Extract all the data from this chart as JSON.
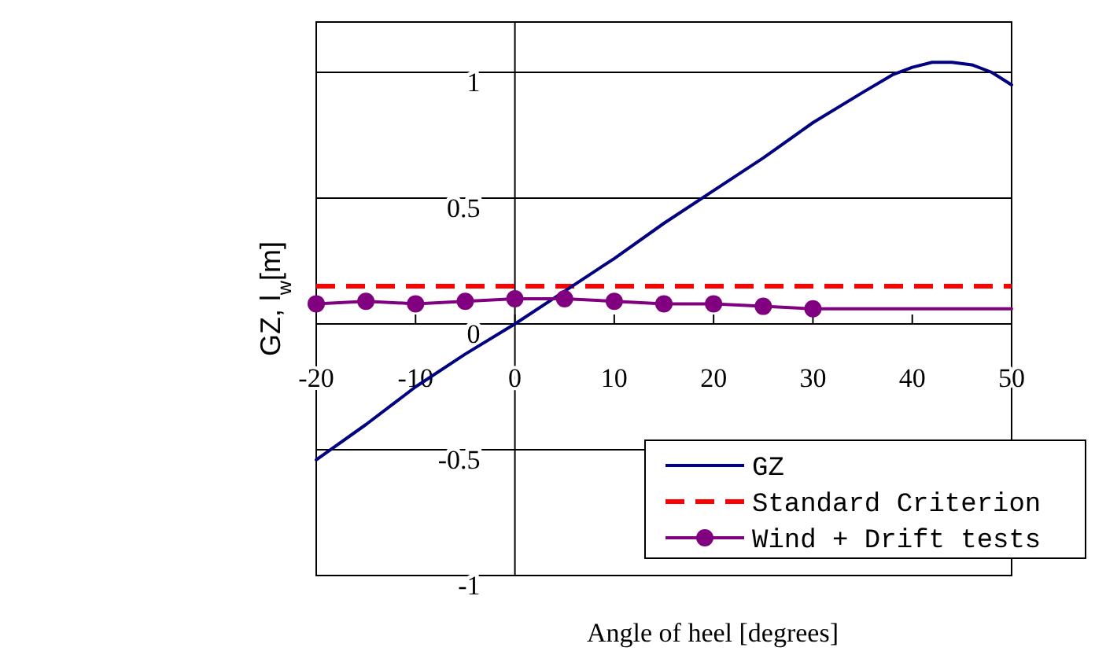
{
  "chart_data": {
    "type": "line",
    "xlabel": "Angle of heel [degrees]",
    "ylabel": "GZ, l$_{w}$[m]",
    "xlim": [
      -20,
      50
    ],
    "xticks": [
      -20,
      -10,
      0,
      10,
      20,
      30,
      40,
      50
    ],
    "ylim": [
      -1,
      1.2
    ],
    "yticks": [
      -1,
      -0.5,
      0,
      0.5,
      1
    ],
    "grid": "y",
    "legend": "bottom right",
    "series": [
      {
        "name": "GZ",
        "color": "#000080",
        "marker": "none",
        "x": [
          -20,
          -15,
          -10,
          -5,
          0,
          5,
          10,
          15,
          20,
          25,
          30,
          35,
          38,
          40,
          42,
          44,
          46,
          48,
          50
        ],
        "values": [
          -0.54,
          -0.4,
          -0.25,
          -0.12,
          0,
          0.13,
          0.26,
          0.4,
          0.53,
          0.66,
          0.8,
          0.92,
          0.99,
          1.02,
          1.04,
          1.04,
          1.03,
          1.0,
          0.95
        ]
      },
      {
        "name": "Wind + Drift tests",
        "color": "#800080",
        "marker": "circle",
        "x": [
          -20,
          -15,
          -10,
          -5,
          0,
          5,
          10,
          15,
          20,
          25,
          30
        ],
        "values": [
          0.08,
          0.09,
          0.08,
          0.09,
          0.1,
          0.1,
          0.09,
          0.08,
          0.08,
          0.07,
          0.06
        ]
      },
      {
        "color": "#800080",
        "marker": "none",
        "x": [
          30,
          50
        ],
        "values": [
          0.06,
          0.06
        ]
      }
    ],
    "ref_lines": [
      {
        "axis": "y",
        "value": 0.15,
        "label": "Standard Criterion",
        "color": "#ff0000",
        "line_style": "dashed"
      }
    ]
  }
}
